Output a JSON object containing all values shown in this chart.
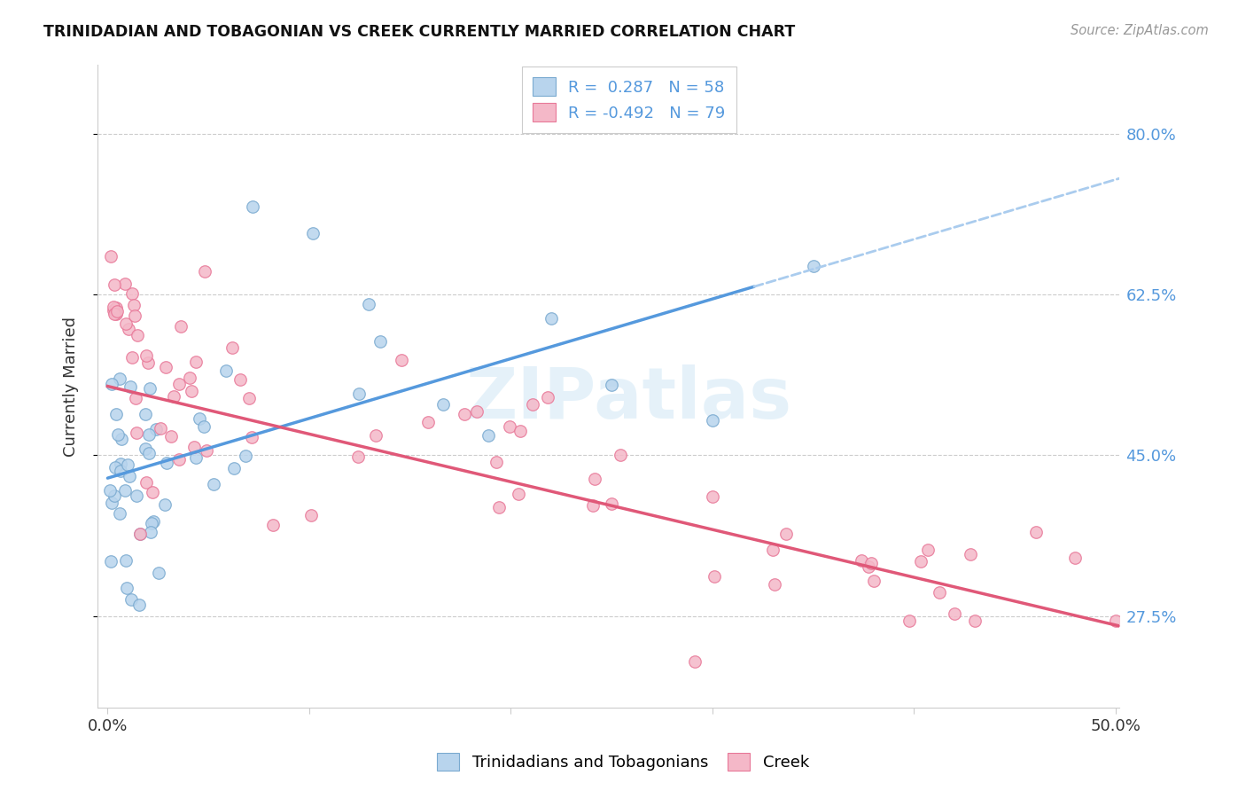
{
  "title": "TRINIDADIAN AND TOBAGONIAN VS CREEK CURRENTLY MARRIED CORRELATION CHART",
  "source_text": "Source: ZipAtlas.com",
  "ylabel": "Currently Married",
  "ytick_labels": [
    "27.5%",
    "45.0%",
    "62.5%",
    "80.0%"
  ],
  "ytick_values": [
    0.275,
    0.45,
    0.625,
    0.8
  ],
  "xlim": [
    -0.005,
    0.502
  ],
  "ylim": [
    0.175,
    0.875
  ],
  "legend_label1": "R =  0.287   N = 58",
  "legend_label2": "R = -0.492   N = 79",
  "legend_color1": "#b8d4ed",
  "legend_color2": "#f4b8c8",
  "scatter1_color": "#b8d4ed",
  "scatter2_color": "#f4b8c8",
  "scatter1_edgecolor": "#7aaad0",
  "scatter2_edgecolor": "#e87898",
  "line1_color": "#5599dd",
  "line2_color": "#e05878",
  "line1_dashed_color": "#aaccee",
  "watermark_text": "ZIPatlas",
  "line1_intercept": 0.425,
  "line1_slope": 0.65,
  "line2_intercept": 0.525,
  "line2_slope": -0.52,
  "line1_solid_end": 0.32,
  "xtick_positions": [
    0.0,
    0.1,
    0.2,
    0.3,
    0.4,
    0.5
  ],
  "xtick_labels": [
    "0.0%",
    "",
    "",
    "",
    "",
    "50.0%"
  ]
}
